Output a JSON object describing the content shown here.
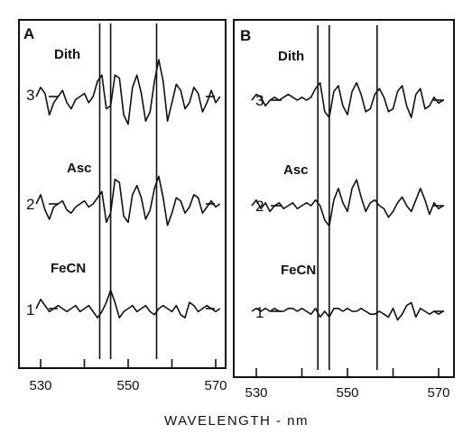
{
  "chart_data": {
    "type": "line",
    "xlabel": "WAVELENGTH - nm",
    "x_ticks": [
      530,
      540,
      550,
      560,
      570
    ],
    "x_tick_labels": [
      "530",
      "550",
      "570"
    ],
    "xlim": [
      526,
      574
    ],
    "panels": [
      {
        "panel": "A",
        "reference_wavelengths": [
          543.5,
          546,
          556.5
        ],
        "traces": [
          {
            "number": "3",
            "label": "Dith",
            "x": [
              529,
              530,
              531,
              532,
              533,
              534,
              535,
              536,
              537,
              538,
              539,
              540,
              541,
              542,
              543,
              544,
              545,
              546,
              547,
              548,
              549,
              550,
              551,
              552,
              553,
              554,
              555,
              556,
              557,
              558,
              559,
              560,
              561,
              562,
              563,
              564,
              565,
              566,
              567,
              568,
              569,
              570,
              571
            ],
            "y": [
              0,
              3,
              1,
              -6,
              -2,
              0,
              2,
              -2,
              -4,
              -1,
              0,
              1,
              -2,
              0,
              5,
              7,
              -4,
              -3,
              7,
              6,
              -6,
              -9,
              3,
              7,
              1,
              -8,
              -5,
              5,
              12,
              5,
              -8,
              -2,
              4,
              2,
              -4,
              -2,
              3,
              1,
              -5,
              -2,
              2,
              -2,
              0
            ]
          },
          {
            "number": "2",
            "label": "Asc",
            "x": [
              529,
              530,
              531,
              532,
              533,
              534,
              535,
              536,
              537,
              538,
              539,
              540,
              541,
              542,
              543,
              544,
              545,
              546,
              547,
              548,
              549,
              550,
              551,
              552,
              553,
              554,
              555,
              556,
              557,
              558,
              559,
              560,
              561,
              562,
              563,
              564,
              565,
              566,
              567,
              568,
              569,
              570,
              571
            ],
            "y": [
              0,
              3,
              -2,
              -5,
              -1,
              0,
              1,
              -2,
              -3,
              -1,
              0,
              1,
              -1,
              0,
              2,
              4,
              -6,
              -3,
              8,
              7,
              -4,
              -6,
              3,
              6,
              2,
              -5,
              -2,
              5,
              9,
              2,
              -7,
              -3,
              2,
              1,
              -3,
              -1,
              3,
              2,
              -3,
              -1,
              1,
              -1,
              0
            ]
          },
          {
            "number": "1",
            "label": "FeCN",
            "x": [
              529,
              530,
              531,
              532,
              533,
              534,
              535,
              536,
              537,
              538,
              539,
              540,
              541,
              542,
              543,
              544,
              545,
              546,
              547,
              548,
              549,
              550,
              551,
              552,
              553,
              554,
              555,
              556,
              557,
              558,
              559,
              560,
              561,
              562,
              563,
              564,
              565,
              566,
              567,
              568,
              569,
              570,
              571
            ],
            "y": [
              0,
              3,
              1,
              -1,
              0,
              1,
              0,
              -1,
              0,
              1,
              -1,
              0,
              1,
              -1,
              -3,
              -1,
              2,
              6,
              2,
              -3,
              -1,
              0,
              1,
              -1,
              0,
              1,
              -1,
              -2,
              0,
              1,
              0,
              -1,
              1,
              -2,
              -3,
              2,
              1,
              -1,
              0,
              1,
              0,
              -1,
              0
            ]
          }
        ]
      },
      {
        "panel": "B",
        "reference_wavelengths": [
          543.5,
          546,
          556.5
        ],
        "traces": [
          {
            "number": "3",
            "label": "Dith",
            "x": [
              529,
              530,
              531,
              532,
              533,
              534,
              535,
              536,
              537,
              538,
              539,
              540,
              541,
              542,
              543,
              544,
              545,
              546,
              547,
              548,
              549,
              550,
              551,
              552,
              553,
              554,
              555,
              556,
              557,
              558,
              559,
              560,
              561,
              562,
              563,
              564,
              565,
              566,
              567,
              568,
              569,
              570,
              571
            ],
            "y": [
              0,
              2,
              1,
              -2,
              0,
              1,
              0,
              1,
              2,
              1,
              0,
              1,
              0,
              1,
              4,
              6,
              -4,
              -6,
              3,
              5,
              -2,
              -5,
              3,
              6,
              2,
              -4,
              -3,
              2,
              4,
              1,
              -4,
              -3,
              3,
              5,
              -2,
              -6,
              2,
              4,
              -3,
              -2,
              1,
              -1,
              0
            ]
          },
          {
            "number": "2",
            "label": "Asc",
            "x": [
              529,
              530,
              531,
              532,
              533,
              534,
              535,
              536,
              537,
              538,
              539,
              540,
              541,
              542,
              543,
              544,
              545,
              546,
              547,
              548,
              549,
              550,
              551,
              552,
              553,
              554,
              555,
              556,
              557,
              558,
              559,
              560,
              561,
              562,
              563,
              564,
              565,
              566,
              567,
              568,
              569,
              570,
              571
            ],
            "y": [
              0,
              2,
              -1,
              1,
              -2,
              0,
              1,
              -1,
              0,
              1,
              -1,
              0,
              1,
              0,
              2,
              0,
              -5,
              -7,
              2,
              6,
              1,
              -2,
              6,
              9,
              3,
              -2,
              1,
              2,
              0,
              -1,
              -4,
              -2,
              1,
              3,
              0,
              -2,
              2,
              6,
              2,
              -3,
              1,
              -1,
              0
            ]
          },
          {
            "number": "1",
            "label": "FeCN",
            "x": [
              529,
              530,
              531,
              532,
              533,
              534,
              535,
              536,
              537,
              538,
              539,
              540,
              541,
              542,
              543,
              544,
              545,
              546,
              547,
              548,
              549,
              550,
              551,
              552,
              553,
              554,
              555,
              556,
              557,
              558,
              559,
              560,
              561,
              562,
              563,
              564,
              565,
              566,
              567,
              568,
              569,
              570,
              571
            ],
            "y": [
              0,
              1,
              0,
              1,
              0,
              1,
              0,
              0,
              1,
              1,
              0,
              1,
              0,
              -1,
              1,
              -2,
              0,
              -2,
              1,
              1,
              0,
              1,
              0,
              0,
              1,
              0,
              -1,
              -1,
              0,
              -1,
              -2,
              1,
              -3,
              -1,
              2,
              3,
              -2,
              1,
              0,
              -1,
              0,
              -1,
              0
            ]
          }
        ]
      }
    ]
  }
}
